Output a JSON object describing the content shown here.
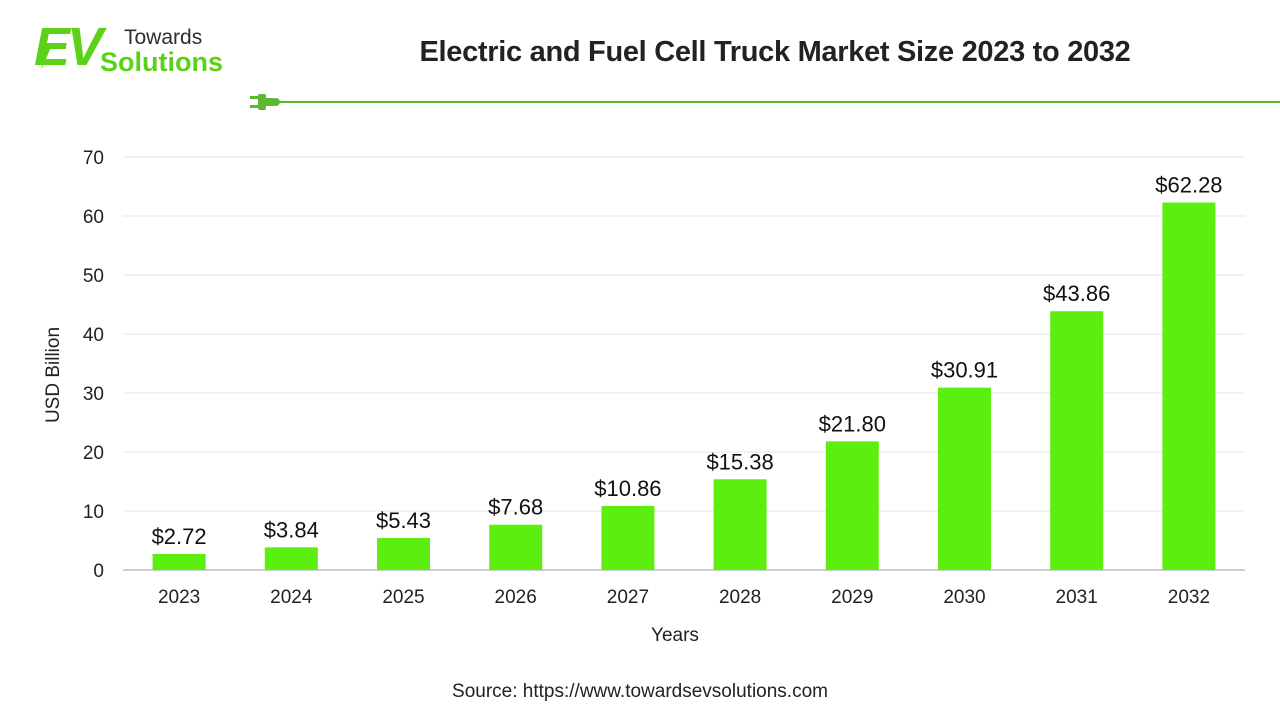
{
  "brand": {
    "logo_mark": "EV",
    "logo_line1": "Towards",
    "logo_line2": "Solutions",
    "brand_color": "#5cd11a"
  },
  "header": {
    "title": "Electric and Fuel Cell Truck Market Size 2023 to 2032",
    "divider_icon": "plug-icon"
  },
  "chart_data": {
    "type": "bar",
    "title": "Electric and Fuel Cell Truck Market Size 2023 to 2032",
    "categories": [
      "2023",
      "2024",
      "2025",
      "2026",
      "2027",
      "2028",
      "2029",
      "2030",
      "2031",
      "2032"
    ],
    "values": [
      2.72,
      3.84,
      5.43,
      7.68,
      10.86,
      15.38,
      21.8,
      30.91,
      43.86,
      62.28
    ],
    "data_labels": [
      "$2.72",
      "$3.84",
      "$5.43",
      "$7.68",
      "$10.86",
      "$15.38",
      "$21.80",
      "$30.91",
      "$43.86",
      "$62.28"
    ],
    "xlabel": "Years",
    "ylabel": "USD Billion",
    "ylim": [
      0,
      70
    ],
    "yticks": [
      0,
      10,
      20,
      30,
      40,
      50,
      60,
      70
    ],
    "grid": true,
    "legend": "none",
    "bar_color": "#5cee0e"
  },
  "footer": {
    "source": "Source: https://www.towardsevsolutions.com"
  }
}
